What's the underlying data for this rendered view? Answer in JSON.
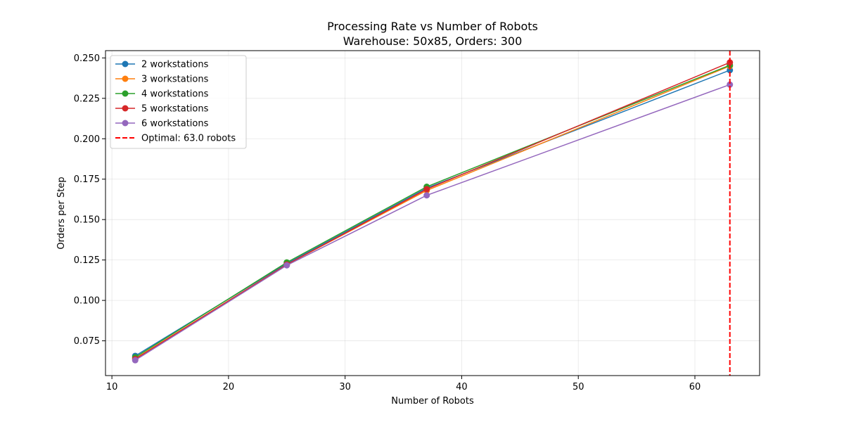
{
  "chart_data": {
    "type": "line",
    "title": "Processing Rate vs Number of Robots",
    "subtitle": "Warehouse: 50x85, Orders: 300",
    "xlabel": "Number of Robots",
    "ylabel": "Orders per Step",
    "xlim": [
      9.45,
      65.55
    ],
    "ylim": [
      0.0535,
      0.2545
    ],
    "xticks": [
      10,
      20,
      30,
      40,
      50,
      60
    ],
    "yticks": [
      0.075,
      0.1,
      0.125,
      0.15,
      0.175,
      0.2,
      0.225,
      0.25
    ],
    "ytick_labels": [
      "0.075",
      "0.100",
      "0.125",
      "0.150",
      "0.175",
      "0.200",
      "0.225",
      "0.250"
    ],
    "grid": true,
    "legend_position": "top-left",
    "x": [
      12,
      25,
      37,
      63
    ],
    "series": [
      {
        "name": "2 workstations",
        "color": "#1f77b4",
        "values": [
          0.0657,
          0.1228,
          0.1695,
          0.2424
        ]
      },
      {
        "name": "3 workstations",
        "color": "#ff7f0e",
        "values": [
          0.064,
          0.1222,
          0.168,
          0.245
        ]
      },
      {
        "name": "4 workstations",
        "color": "#2ca02c",
        "values": [
          0.0648,
          0.1235,
          0.1703,
          0.2455
        ]
      },
      {
        "name": "5 workstations",
        "color": "#d62728",
        "values": [
          0.0637,
          0.1222,
          0.1688,
          0.2472
        ]
      },
      {
        "name": "6 workstations",
        "color": "#9467bd",
        "values": [
          0.063,
          0.1217,
          0.165,
          0.2335
        ]
      }
    ],
    "vline": {
      "x": 63.0,
      "color": "#ff0000",
      "style": "dashed",
      "name": "Optimal: 63.0 robots"
    }
  }
}
